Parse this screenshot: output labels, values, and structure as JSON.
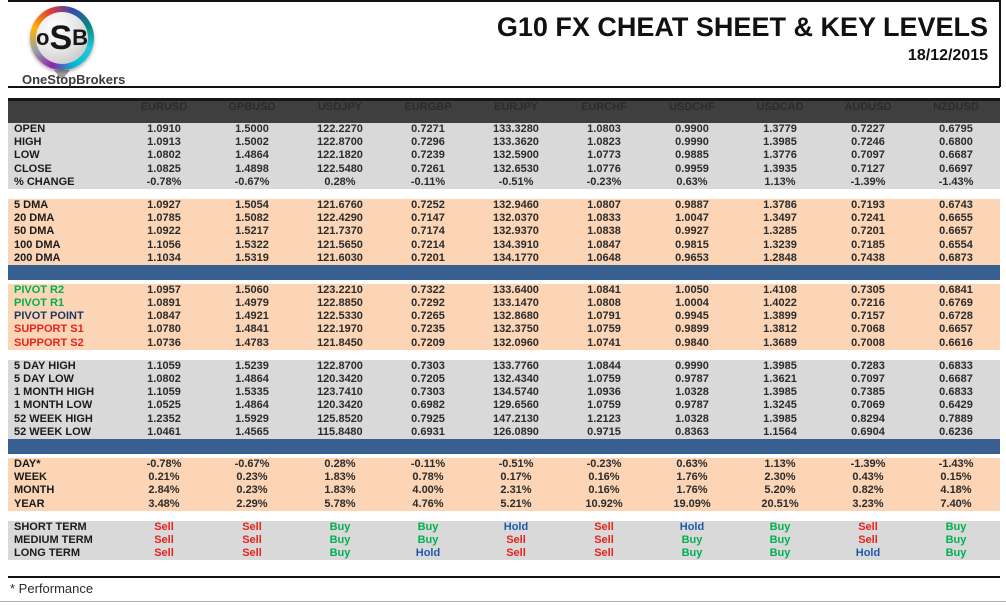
{
  "header": {
    "title": "G10 FX CHEAT SHEET & KEY LEVELS",
    "date": "18/12/2015",
    "logo": {
      "mono_left": "o",
      "mono_mid": "S",
      "mono_right": "B",
      "brand": "OneStopBrokers"
    }
  },
  "footer": {
    "note": "* Performance"
  },
  "colors": {
    "header_row_bg": "#3F3F3F",
    "section_gray_bg": "#D9D9D9",
    "section_peach_bg": "#FBD5B5",
    "divider_blue": "#376091",
    "buy_green": "#00B050",
    "sell_red": "#E8231E",
    "hold_blue": "#1F5AA9",
    "pivot_navy": "#1F3864"
  },
  "table": {
    "columns": [
      "EURUSD",
      "GPBUSD",
      "USDJPY",
      "EURGBP",
      "EURJPY",
      "EURCHF",
      "USDCHF",
      "USDCAD",
      "AUDUSD",
      "NZDUSD"
    ],
    "sections": [
      {
        "type": "rows",
        "name": "ohlc",
        "bg": "gray",
        "rows": [
          {
            "label": "OPEN",
            "values": [
              "1.0910",
              "1.5000",
              "122.2270",
              "0.7271",
              "133.3280",
              "1.0803",
              "0.9900",
              "1.3779",
              "0.7227",
              "0.6795"
            ]
          },
          {
            "label": "HIGH",
            "values": [
              "1.0913",
              "1.5002",
              "122.8700",
              "0.7296",
              "133.3620",
              "1.0823",
              "0.9990",
              "1.3985",
              "0.7246",
              "0.6800"
            ]
          },
          {
            "label": "LOW",
            "values": [
              "1.0802",
              "1.4864",
              "122.1820",
              "0.7239",
              "132.5900",
              "1.0773",
              "0.9885",
              "1.3776",
              "0.7097",
              "0.6687"
            ]
          },
          {
            "label": "CLOSE",
            "values": [
              "1.0825",
              "1.4898",
              "122.5480",
              "0.7261",
              "132.6530",
              "1.0776",
              "0.9959",
              "1.3935",
              "0.7127",
              "0.6697"
            ]
          },
          {
            "label": "% CHANGE",
            "values": [
              "-0.78%",
              "-0.67%",
              "0.28%",
              "-0.11%",
              "-0.51%",
              "-0.23%",
              "0.63%",
              "1.13%",
              "-1.39%",
              "-1.43%"
            ]
          }
        ]
      },
      {
        "type": "gap"
      },
      {
        "type": "rows",
        "name": "moving-averages",
        "bg": "peach",
        "rows": [
          {
            "label": "5 DMA",
            "values": [
              "1.0927",
              "1.5054",
              "121.6760",
              "0.7252",
              "132.9460",
              "1.0807",
              "0.9887",
              "1.3786",
              "0.7193",
              "0.6743"
            ]
          },
          {
            "label": "20 DMA",
            "values": [
              "1.0785",
              "1.5082",
              "122.4290",
              "0.7147",
              "132.0370",
              "1.0833",
              "1.0047",
              "1.3497",
              "0.7241",
              "0.6655"
            ]
          },
          {
            "label": "50 DMA",
            "values": [
              "1.0922",
              "1.5217",
              "121.7370",
              "0.7174",
              "132.9370",
              "1.0838",
              "0.9927",
              "1.3285",
              "0.7201",
              "0.6657"
            ]
          },
          {
            "label": "100 DMA",
            "values": [
              "1.1056",
              "1.5322",
              "121.5650",
              "0.7214",
              "134.3910",
              "1.0847",
              "0.9815",
              "1.3239",
              "0.7185",
              "0.6554"
            ]
          },
          {
            "label": "200 DMA",
            "values": [
              "1.1034",
              "1.5319",
              "121.6030",
              "0.7201",
              "134.1770",
              "1.0648",
              "0.9653",
              "1.2848",
              "0.7438",
              "0.6873"
            ]
          }
        ]
      },
      {
        "type": "divider"
      },
      {
        "type": "gap-sm"
      },
      {
        "type": "rows",
        "name": "pivots",
        "bg": "peach",
        "rows": [
          {
            "label": "PIVOT R2",
            "label_style": "green",
            "values": [
              "1.0957",
              "1.5060",
              "123.2210",
              "0.7322",
              "133.6400",
              "1.0841",
              "1.0050",
              "1.4108",
              "0.7305",
              "0.6841"
            ]
          },
          {
            "label": "PIVOT R1",
            "label_style": "green",
            "values": [
              "1.0891",
              "1.4979",
              "122.8850",
              "0.7292",
              "133.1470",
              "1.0808",
              "1.0004",
              "1.4022",
              "0.7216",
              "0.6769"
            ]
          },
          {
            "label": "PIVOT POINT",
            "label_style": "navy",
            "values": [
              "1.0847",
              "1.4921",
              "122.5330",
              "0.7265",
              "132.8680",
              "1.0791",
              "0.9945",
              "1.3899",
              "0.7157",
              "0.6728"
            ]
          },
          {
            "label": "SUPPORT S1",
            "label_style": "red",
            "values": [
              "1.0780",
              "1.4841",
              "122.1970",
              "0.7235",
              "132.3750",
              "1.0759",
              "0.9899",
              "1.3812",
              "0.7068",
              "0.6657"
            ]
          },
          {
            "label": "SUPPORT S2",
            "label_style": "red",
            "values": [
              "1.0736",
              "1.4783",
              "121.8450",
              "0.7209",
              "132.0960",
              "1.0741",
              "0.9840",
              "1.3689",
              "0.7008",
              "0.6616"
            ]
          }
        ]
      },
      {
        "type": "gap"
      },
      {
        "type": "rows",
        "name": "ranges",
        "bg": "gray",
        "rows": [
          {
            "label": "5 DAY HIGH",
            "values": [
              "1.1059",
              "1.5239",
              "122.8700",
              "0.7303",
              "133.7760",
              "1.0844",
              "0.9990",
              "1.3985",
              "0.7283",
              "0.6833"
            ]
          },
          {
            "label": "5 DAY LOW",
            "values": [
              "1.0802",
              "1.4864",
              "120.3420",
              "0.7205",
              "132.4340",
              "1.0759",
              "0.9787",
              "1.3621",
              "0.7097",
              "0.6687"
            ]
          },
          {
            "label": "1 MONTH HIGH",
            "values": [
              "1.1059",
              "1.5335",
              "123.7410",
              "0.7303",
              "134.5740",
              "1.0936",
              "1.0328",
              "1.3985",
              "0.7385",
              "0.6833"
            ]
          },
          {
            "label": "1 MONTH LOW",
            "values": [
              "1.0525",
              "1.4864",
              "120.3420",
              "0.6982",
              "129.6560",
              "1.0759",
              "0.9787",
              "1.3245",
              "0.7069",
              "0.6429"
            ]
          },
          {
            "label": "52 WEEK HIGH",
            "values": [
              "1.2352",
              "1.5929",
              "125.8520",
              "0.7925",
              "147.2130",
              "1.2123",
              "1.0328",
              "1.3985",
              "0.8294",
              "0.7889"
            ]
          },
          {
            "label": "52 WEEK LOW",
            "values": [
              "1.0461",
              "1.4565",
              "115.8480",
              "0.6931",
              "126.0890",
              "0.9715",
              "0.8363",
              "1.1564",
              "0.6904",
              "0.6236"
            ]
          }
        ]
      },
      {
        "type": "divider"
      },
      {
        "type": "gap-sm"
      },
      {
        "type": "rows",
        "name": "performance",
        "bg": "peach",
        "rows": [
          {
            "label": "DAY*",
            "values": [
              "-0.78%",
              "-0.67%",
              "0.28%",
              "-0.11%",
              "-0.51%",
              "-0.23%",
              "0.63%",
              "1.13%",
              "-1.39%",
              "-1.43%"
            ]
          },
          {
            "label": "WEEK",
            "values": [
              "0.21%",
              "0.23%",
              "1.83%",
              "0.78%",
              "0.17%",
              "0.16%",
              "1.76%",
              "2.30%",
              "0.43%",
              "0.15%"
            ]
          },
          {
            "label": "MONTH",
            "values": [
              "2.84%",
              "0.23%",
              "1.83%",
              "4.00%",
              "2.31%",
              "0.16%",
              "1.76%",
              "5.20%",
              "0.82%",
              "4.18%"
            ]
          },
          {
            "label": "YEAR",
            "values": [
              "3.48%",
              "2.29%",
              "5.78%",
              "4.76%",
              "5.21%",
              "10.92%",
              "19.09%",
              "20.51%",
              "3.23%",
              "7.40%"
            ]
          }
        ]
      },
      {
        "type": "gap"
      },
      {
        "type": "rows",
        "name": "signals",
        "bg": "gray",
        "kind": "signals",
        "rows": [
          {
            "label": "SHORT TERM",
            "values": [
              "Sell",
              "Sell",
              "Buy",
              "Buy",
              "Hold",
              "Sell",
              "Hold",
              "Buy",
              "Sell",
              "Buy"
            ]
          },
          {
            "label": "MEDIUM TERM",
            "values": [
              "Sell",
              "Sell",
              "Buy",
              "Buy",
              "Sell",
              "Sell",
              "Buy",
              "Buy",
              "Sell",
              "Buy"
            ]
          },
          {
            "label": "LONG TERM",
            "values": [
              "Sell",
              "Sell",
              "Buy",
              "Hold",
              "Sell",
              "Sell",
              "Buy",
              "Buy",
              "Hold",
              "Buy"
            ]
          }
        ]
      }
    ]
  }
}
